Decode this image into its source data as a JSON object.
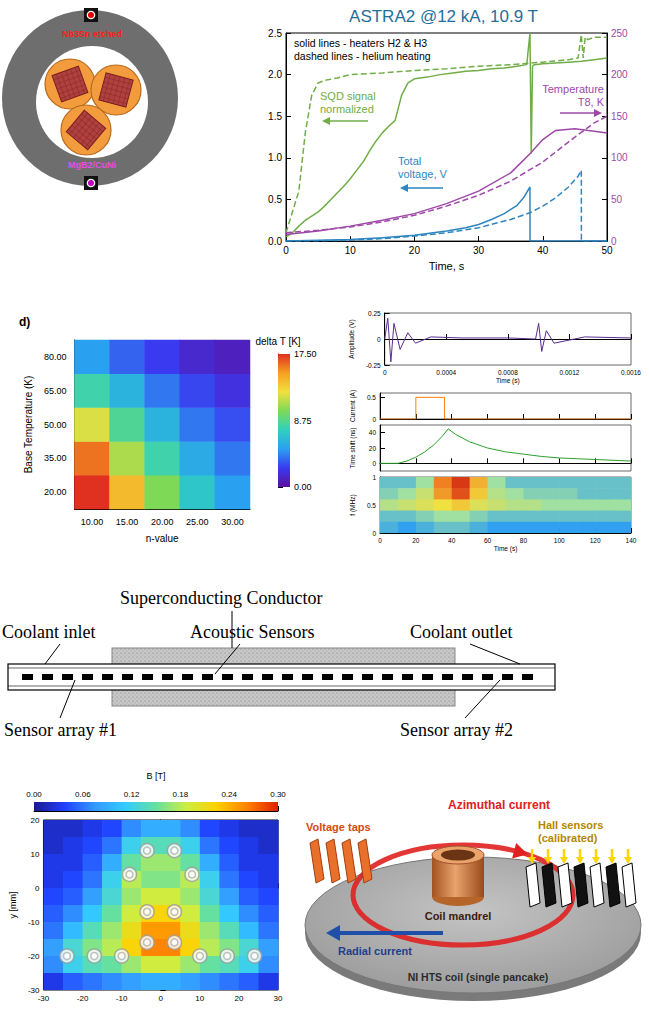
{
  "cross_section": {
    "top_label": "Nb3Sn etched",
    "bottom_label": "MgB2/CuNi"
  },
  "chart_data": [
    {
      "type": "line",
      "title": "ASTRA2 @12 kA, 10.9 T",
      "annotations": [
        "solid lines - heaters H2 & H3",
        "dashed lines - helium heating"
      ],
      "xlabel": "Time, s",
      "xlim": [
        0,
        50
      ],
      "xticks": [
        0,
        10,
        20,
        30,
        40,
        50
      ],
      "ylim": [
        0,
        2.5
      ],
      "yticks": [
        {
          "value": 0,
          "label": "0.0"
        },
        0.5,
        {
          "value": 1,
          "label": "1.0"
        },
        1.5,
        {
          "value": 2,
          "label": "2.0"
        },
        2.5
      ],
      "y2lim": [
        0,
        250
      ],
      "y2ticks": [
        0,
        50,
        100,
        150,
        200,
        250
      ],
      "grid": false,
      "series": [
        {
          "name": "SQD signal normalized",
          "color": "#70ad47",
          "line_style": "solid",
          "x": [
            0,
            1,
            2,
            3,
            4,
            5,
            6,
            7,
            8,
            9,
            10,
            11,
            12,
            13,
            14,
            15,
            16,
            17,
            18,
            19,
            20,
            22,
            24,
            26,
            28,
            30,
            32,
            34,
            36,
            37.5,
            38,
            38.2,
            38.4,
            38.7,
            40,
            42,
            44,
            46,
            48,
            50
          ],
          "values": [
            0.05,
            0.1,
            0.18,
            0.25,
            0.3,
            0.35,
            0.42,
            0.5,
            0.58,
            0.66,
            0.75,
            0.85,
            0.95,
            1.08,
            1.2,
            1.3,
            1.38,
            1.45,
            1.75,
            1.9,
            1.95,
            1.97,
            2.0,
            2.02,
            2.04,
            2.05,
            2.07,
            2.08,
            2.1,
            2.12,
            2.5,
            1.05,
            2.1,
            2.12,
            2.13,
            2.14,
            2.15,
            2.16,
            2.18,
            2.2
          ]
        },
        {
          "name": "SQD signal normalized",
          "color": "#70ad47",
          "line_style": "dashed",
          "x": [
            0,
            1,
            2,
            3,
            4,
            5,
            6,
            8,
            10,
            15,
            20,
            25,
            30,
            35,
            40,
            44,
            45.5,
            46,
            46.3,
            46.6,
            47,
            48,
            50
          ],
          "values": [
            0.1,
            0.35,
            0.6,
            1.3,
            1.75,
            1.9,
            1.93,
            1.96,
            2.0,
            2.02,
            2.05,
            2.07,
            2.1,
            2.12,
            2.15,
            2.18,
            2.2,
            2.48,
            2.2,
            2.45,
            2.42,
            2.45,
            2.45
          ]
        },
        {
          "name": "Temperature T8, K",
          "color": "#9e48a8",
          "line_style": "solid",
          "axis": "y2",
          "x": [
            0,
            5,
            10,
            15,
            20,
            25,
            30,
            35,
            38,
            40,
            42,
            45,
            48,
            50
          ],
          "values": [
            8,
            12,
            18,
            25,
            33,
            45,
            60,
            82,
            105,
            122,
            133,
            135,
            132,
            130
          ]
        },
        {
          "name": "Temperature T8, K",
          "color": "#9e48a8",
          "line_style": "dashed",
          "axis": "y2",
          "x": [
            0,
            5,
            10,
            15,
            20,
            25,
            30,
            35,
            40,
            45,
            48,
            50
          ],
          "values": [
            10,
            13,
            17,
            23,
            31,
            42,
            55,
            72,
            95,
            125,
            142,
            150
          ]
        },
        {
          "name": "Total voltage, V",
          "color": "#2e86c1",
          "line_style": "solid",
          "x": [
            0,
            5,
            10,
            15,
            20,
            25,
            28,
            30,
            32,
            34,
            36,
            37,
            38,
            38.01,
            40,
            50
          ],
          "values": [
            0,
            0.01,
            0.02,
            0.04,
            0.07,
            0.12,
            0.16,
            0.2,
            0.26,
            0.33,
            0.43,
            0.52,
            0.65,
            0,
            0,
            0
          ]
        },
        {
          "name": "Total voltage, V",
          "color": "#2e86c1",
          "line_style": "dashed",
          "x": [
            0,
            10,
            15,
            20,
            25,
            30,
            35,
            38,
            40,
            42,
            44,
            45.5,
            46,
            46.01,
            50
          ],
          "values": [
            0,
            0.01,
            0.03,
            0.06,
            0.1,
            0.16,
            0.26,
            0.34,
            0.42,
            0.52,
            0.65,
            0.78,
            0.85,
            0,
            0
          ]
        }
      ]
    },
    {
      "type": "heatmap",
      "label": "d)",
      "xlabel": "n-value",
      "ylabel": "Base Temperature (K)",
      "zlabel": "delta T [K]",
      "xticks": [
        {
          "value": 10,
          "label": "10.00"
        },
        {
          "value": 15,
          "label": "15.00"
        },
        {
          "value": 20,
          "label": "20.00"
        },
        {
          "value": 25,
          "label": "25.00"
        },
        {
          "value": 30,
          "label": "30.00"
        }
      ],
      "yticks": [
        {
          "value": 20,
          "label": "20.00"
        },
        {
          "value": 35,
          "label": "35.00"
        },
        {
          "value": 50,
          "label": "50.00"
        },
        {
          "value": 65,
          "label": "65.00"
        },
        {
          "value": 80,
          "label": "80.00"
        }
      ],
      "values": [
        [
          20,
          14,
          10,
          7,
          5
        ],
        [
          16,
          11,
          8,
          5.5,
          4
        ],
        [
          12,
          8.5,
          6,
          4,
          3
        ],
        [
          8,
          6,
          4,
          2.8,
          2
        ],
        [
          5,
          3.5,
          2.5,
          1.5,
          1
        ]
      ],
      "colorbar": {
        "range": [
          0,
          17.5
        ],
        "ticks": [
          {
            "value": 0,
            "label": "0.00"
          },
          8.75,
          {
            "value": 17.5,
            "label": "17.50"
          }
        ]
      }
    },
    {
      "type": "line",
      "xlabel": "Time (s)",
      "ylabel": "Amplitude (V)",
      "xlim": [
        0,
        0.0016
      ],
      "xticks": [
        0,
        0.0004,
        0.0008,
        0.0012,
        0.0016
      ],
      "ylim": [
        -0.25,
        0.25
      ],
      "yticks": [
        -0.25,
        0,
        0.25
      ],
      "series": [
        {
          "color": "#5b2c8f",
          "x": [
            0,
            2e-05,
            4e-05,
            6e-05,
            0.0001,
            0.00015,
            0.0002,
            0.0003,
            0.0005,
            0.0008,
            0.00098,
            0.001,
            0.00102,
            0.00105,
            0.0011,
            0.0013,
            0.0016
          ],
          "values": [
            0,
            0.2,
            -0.22,
            0.15,
            -0.1,
            0.06,
            -0.04,
            0.02,
            0.01,
            0.01,
            0,
            0.15,
            -0.12,
            0.08,
            -0.04,
            0.02,
            0.01
          ]
        }
      ]
    },
    {
      "type": "line",
      "ylabel": "Current (A)",
      "tick_labels": "y",
      "xlim": [
        0,
        140
      ],
      "xticks": [
        0,
        20,
        40,
        60,
        80,
        100,
        120,
        140
      ],
      "ylim": [
        0,
        0.6
      ],
      "yticks": [
        0,
        0.5
      ],
      "series": [
        {
          "color": "#ff7f0e",
          "x": [
            0,
            20,
            20,
            36,
            36,
            140
          ],
          "values": [
            0,
            0,
            0.5,
            0.5,
            0,
            0
          ]
        }
      ]
    },
    {
      "type": "line",
      "ylabel": "Time shift (ns)",
      "tick_labels": "y",
      "xlim": [
        0,
        140
      ],
      "xticks": [
        0,
        20,
        40,
        60,
        80,
        100,
        120,
        140
      ],
      "ylim": [
        -10,
        50
      ],
      "yticks": [
        0,
        20,
        40
      ],
      "series": [
        {
          "color": "#2ca02c",
          "x": [
            0,
            10,
            15,
            20,
            25,
            30,
            35,
            38,
            42,
            50,
            60,
            70,
            80,
            90,
            100,
            110,
            120,
            130,
            140
          ],
          "values": [
            0,
            0,
            3,
            8,
            15,
            24,
            36,
            45,
            38,
            28,
            20,
            15,
            12,
            9,
            7,
            6,
            5,
            4,
            3
          ]
        }
      ]
    },
    {
      "type": "heatmap",
      "xlabel": "Time (s)",
      "ylabel": "f (MHz)",
      "xlim": [
        0,
        140
      ],
      "xticks": [
        0,
        20,
        40,
        60,
        80,
        100,
        120,
        140
      ],
      "ylim": [
        0,
        1
      ],
      "yticks": [
        0,
        0.5,
        1
      ],
      "x": [
        5,
        15,
        25,
        35,
        45,
        55,
        65,
        75,
        85,
        95,
        105,
        115,
        125,
        135
      ],
      "y": [
        0.9,
        0.7,
        0.5,
        0.3,
        0.1
      ],
      "values": [
        [
          0.3,
          0.3,
          0.4,
          0.8,
          0.95,
          0.7,
          0.4,
          0.3,
          0.3,
          0.3,
          0.3,
          0.3,
          0.3,
          0.3
        ],
        [
          0.35,
          0.4,
          0.5,
          0.75,
          0.9,
          0.65,
          0.45,
          0.4,
          0.35,
          0.35,
          0.35,
          0.3,
          0.3,
          0.3
        ],
        [
          0.45,
          0.5,
          0.55,
          0.6,
          0.65,
          0.55,
          0.5,
          0.45,
          0.45,
          0.4,
          0.4,
          0.4,
          0.4,
          0.4
        ],
        [
          0.3,
          0.3,
          0.35,
          0.4,
          0.4,
          0.35,
          0.3,
          0.3,
          0.3,
          0.3,
          0.3,
          0.3,
          0.3,
          0.3
        ],
        [
          0.25,
          0.2,
          0.25,
          0.3,
          0.3,
          0.25,
          0.2,
          0.2,
          0.2,
          0.2,
          0.2,
          0.2,
          0.2,
          0.2
        ]
      ],
      "color_range": [
        0,
        1
      ]
    },
    {
      "type": "heatmap",
      "ylabel": "y [mm]",
      "xlim": [
        -30,
        30
      ],
      "xticks": [
        -30,
        -20,
        -10,
        0,
        10,
        20,
        30
      ],
      "ylim": [
        -30,
        20
      ],
      "yticks": [
        -30,
        -20,
        -10,
        0,
        10,
        20
      ],
      "x": [
        -27.5,
        -22.5,
        -17.5,
        -12.5,
        -7.5,
        -2.5,
        2.5,
        7.5,
        12.5,
        17.5,
        22.5,
        27.5
      ],
      "y": [
        17.5,
        12.5,
        7.5,
        2.5,
        -2.5,
        -7.5,
        -12.5,
        -17.5,
        -22.5,
        -27.5
      ],
      "values": [
        [
          0.02,
          0.02,
          0.03,
          0.04,
          0.07,
          0.09,
          0.09,
          0.07,
          0.04,
          0.03,
          0.02,
          0.02
        ],
        [
          0.02,
          0.03,
          0.04,
          0.06,
          0.12,
          0.14,
          0.14,
          0.12,
          0.06,
          0.04,
          0.03,
          0.02
        ],
        [
          0.03,
          0.03,
          0.05,
          0.09,
          0.15,
          0.17,
          0.17,
          0.15,
          0.09,
          0.05,
          0.03,
          0.03
        ],
        [
          0.03,
          0.04,
          0.06,
          0.12,
          0.18,
          0.16,
          0.16,
          0.18,
          0.12,
          0.06,
          0.04,
          0.03
        ],
        [
          0.04,
          0.05,
          0.08,
          0.13,
          0.17,
          0.19,
          0.19,
          0.17,
          0.13,
          0.08,
          0.05,
          0.04
        ],
        [
          0.05,
          0.07,
          0.11,
          0.15,
          0.19,
          0.22,
          0.22,
          0.19,
          0.15,
          0.11,
          0.07,
          0.05
        ],
        [
          0.06,
          0.1,
          0.14,
          0.17,
          0.21,
          0.25,
          0.25,
          0.21,
          0.17,
          0.14,
          0.1,
          0.06
        ],
        [
          0.08,
          0.13,
          0.16,
          0.18,
          0.22,
          0.26,
          0.26,
          0.22,
          0.18,
          0.16,
          0.13,
          0.08
        ],
        [
          0.07,
          0.12,
          0.14,
          0.15,
          0.17,
          0.19,
          0.19,
          0.17,
          0.15,
          0.14,
          0.12,
          0.07
        ],
        [
          0.03,
          0.05,
          0.06,
          0.07,
          0.08,
          0.09,
          0.09,
          0.08,
          0.07,
          0.06,
          0.05,
          0.03
        ]
      ],
      "colorbar": {
        "title": "B [T]",
        "range": [
          0,
          0.3
        ],
        "ticks": [
          {
            "value": 0,
            "label": "0.00"
          },
          0.06,
          0.12,
          0.18,
          0.24,
          {
            "value": 0.3,
            "label": "0.30"
          }
        ]
      },
      "conductors": {
        "x": [
          -3.5,
          3.5,
          -8,
          8,
          -3.5,
          3.5,
          -3.5,
          3.5,
          -24,
          -17,
          -10,
          10,
          17,
          24
        ],
        "y": [
          11,
          11,
          4,
          4,
          -7,
          -7,
          -16,
          -16,
          -20,
          -20,
          -20,
          -20,
          -20,
          -20
        ]
      }
    }
  ],
  "sensor_diagram": {
    "conductor": "Superconducting Conductor",
    "inlet": "Coolant inlet",
    "sensors": "Acoustic Sensors",
    "outlet": "Coolant outlet",
    "array_1": "Sensor array #1",
    "array_2": "Sensor array #2"
  },
  "coil_diagram": {
    "azimuthal": "Azimuthal current",
    "taps": "Voltage taps",
    "mandrel": "Coil mandrel",
    "radial": "Radial current",
    "hall": "Hall sensors (calibrated)",
    "coil": "NI HTS coil (single pancake)"
  }
}
